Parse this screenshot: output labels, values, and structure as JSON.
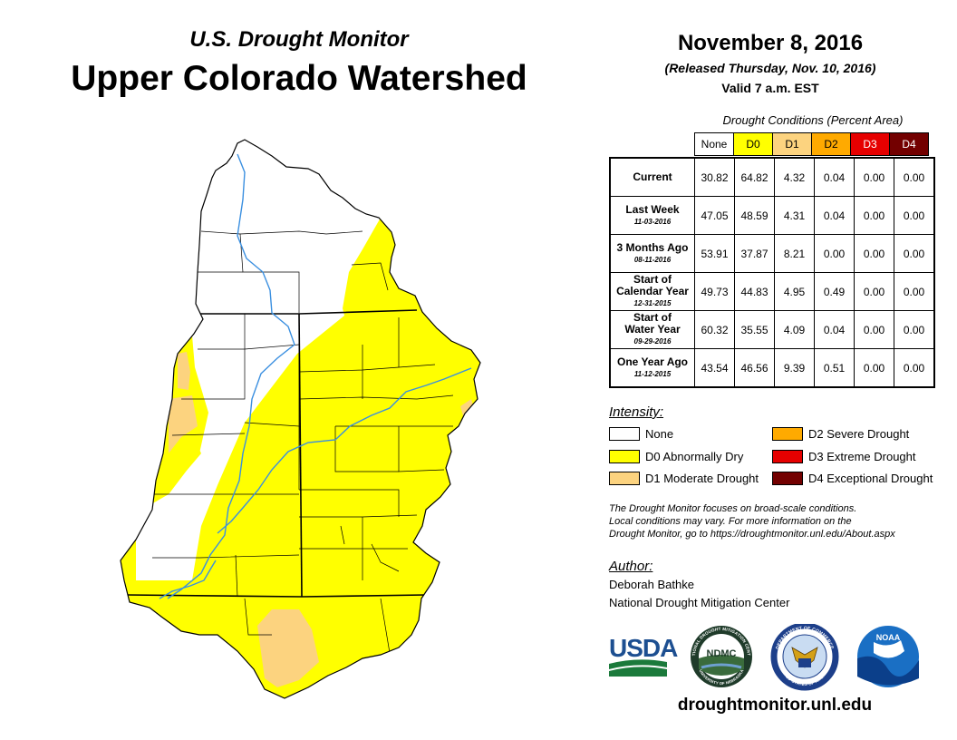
{
  "header": {
    "subtitle": "U.S. Drought Monitor",
    "title": "Upper Colorado Watershed",
    "date": "November 8, 2016",
    "released": "(Released Thursday, Nov. 10, 2016)",
    "valid": "Valid 7 a.m. EST"
  },
  "table": {
    "caption": "Drought Conditions (Percent Area)",
    "columns": [
      "None",
      "D0",
      "D1",
      "D2",
      "D3",
      "D4"
    ],
    "column_colors": [
      "#ffffff",
      "#ffff00",
      "#fcd37f",
      "#ffaa00",
      "#e60000",
      "#730000"
    ],
    "column_text_colors": [
      "#000000",
      "#000000",
      "#000000",
      "#000000",
      "#ffffff",
      "#ffffff"
    ],
    "rows": [
      {
        "label": "Current",
        "label2": "",
        "date": "",
        "values": [
          "30.82",
          "64.82",
          "4.32",
          "0.04",
          "0.00",
          "0.00"
        ]
      },
      {
        "label": "Last Week",
        "label2": "",
        "date": "11-03-2016",
        "values": [
          "47.05",
          "48.59",
          "4.31",
          "0.04",
          "0.00",
          "0.00"
        ]
      },
      {
        "label": "3 Months Ago",
        "label2": "",
        "date": "08-11-2016",
        "values": [
          "53.91",
          "37.87",
          "8.21",
          "0.00",
          "0.00",
          "0.00"
        ]
      },
      {
        "label": "Start of",
        "label2": "Calendar Year",
        "date": "12-31-2015",
        "values": [
          "49.73",
          "44.83",
          "4.95",
          "0.49",
          "0.00",
          "0.00"
        ]
      },
      {
        "label": "Start of",
        "label2": "Water Year",
        "date": "09-29-2016",
        "values": [
          "60.32",
          "35.55",
          "4.09",
          "0.04",
          "0.00",
          "0.00"
        ]
      },
      {
        "label": "One Year Ago",
        "label2": "",
        "date": "11-12-2015",
        "values": [
          "43.54",
          "46.56",
          "9.39",
          "0.51",
          "0.00",
          "0.00"
        ]
      }
    ]
  },
  "legend": {
    "title": "Intensity:",
    "items": [
      {
        "label": "None",
        "color": "#ffffff"
      },
      {
        "label": "D0 Abnormally Dry",
        "color": "#ffff00"
      },
      {
        "label": "D1 Moderate Drought",
        "color": "#fcd37f"
      },
      {
        "label": "D2 Severe Drought",
        "color": "#ffaa00"
      },
      {
        "label": "D3 Extreme Drought",
        "color": "#e60000"
      },
      {
        "label": "D4 Exceptional Drought",
        "color": "#730000"
      }
    ]
  },
  "note": {
    "line1": "The Drought Monitor focuses on broad-scale conditions.",
    "line2": "Local conditions may vary. For more information on the",
    "line3": "Drought Monitor, go to https://droughtmonitor.unl.edu/About.aspx"
  },
  "author": {
    "title": "Author:",
    "name": "Deborah Bathke",
    "org": "National Drought Mitigation Center"
  },
  "logos": {
    "usda": "USDA",
    "ndmc": "NDMC",
    "noaa": "NOAA",
    "ndmc_ring": "NATIONAL DROUGHT MITIGATION CENTER",
    "ndmc_ring_bottom": "UNIVERSITY OF NEBRASKA",
    "commerce_ring": "DEPARTMENT OF COMMERCE",
    "commerce_ring_bottom": "UNITED STATES OF AMERICA"
  },
  "footer": {
    "url": "droughtmonitor.unl.edu"
  }
}
